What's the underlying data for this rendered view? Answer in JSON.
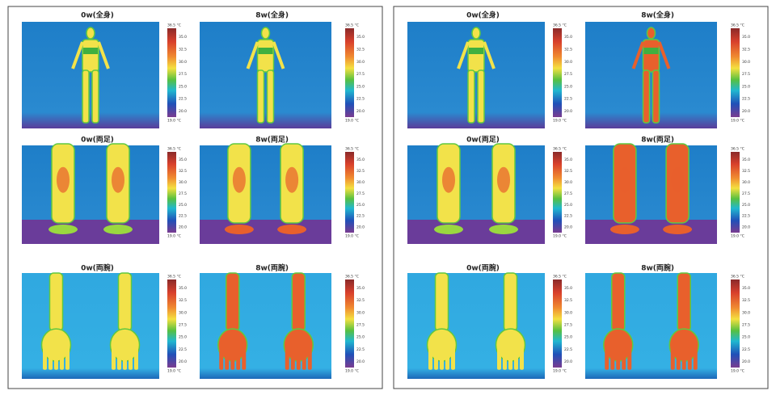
{
  "panels": [
    {
      "images": [
        {
          "label": "0w(全身)"
        },
        {
          "label": "8w(全身)"
        },
        {
          "label": "0w(両足)"
        },
        {
          "label": "8w(両足)"
        },
        {
          "label": "0w(両腕)"
        },
        {
          "label": "8w(両腕)"
        }
      ]
    },
    {
      "images": [
        {
          "label": "0w(全身)"
        },
        {
          "label": "8w(全身)"
        },
        {
          "label": "0w(両足)"
        },
        {
          "label": "8w(両足)"
        },
        {
          "label": "0w(両腕)"
        },
        {
          "label": "8w(両腕)"
        }
      ]
    }
  ],
  "colorbar": {
    "top": "36.5 °C",
    "ticks": [
      "35.0",
      "32.5",
      "30.0",
      "27.5",
      "25.0",
      "22.5",
      "20.0"
    ],
    "bottom": "19.0 °C"
  }
}
